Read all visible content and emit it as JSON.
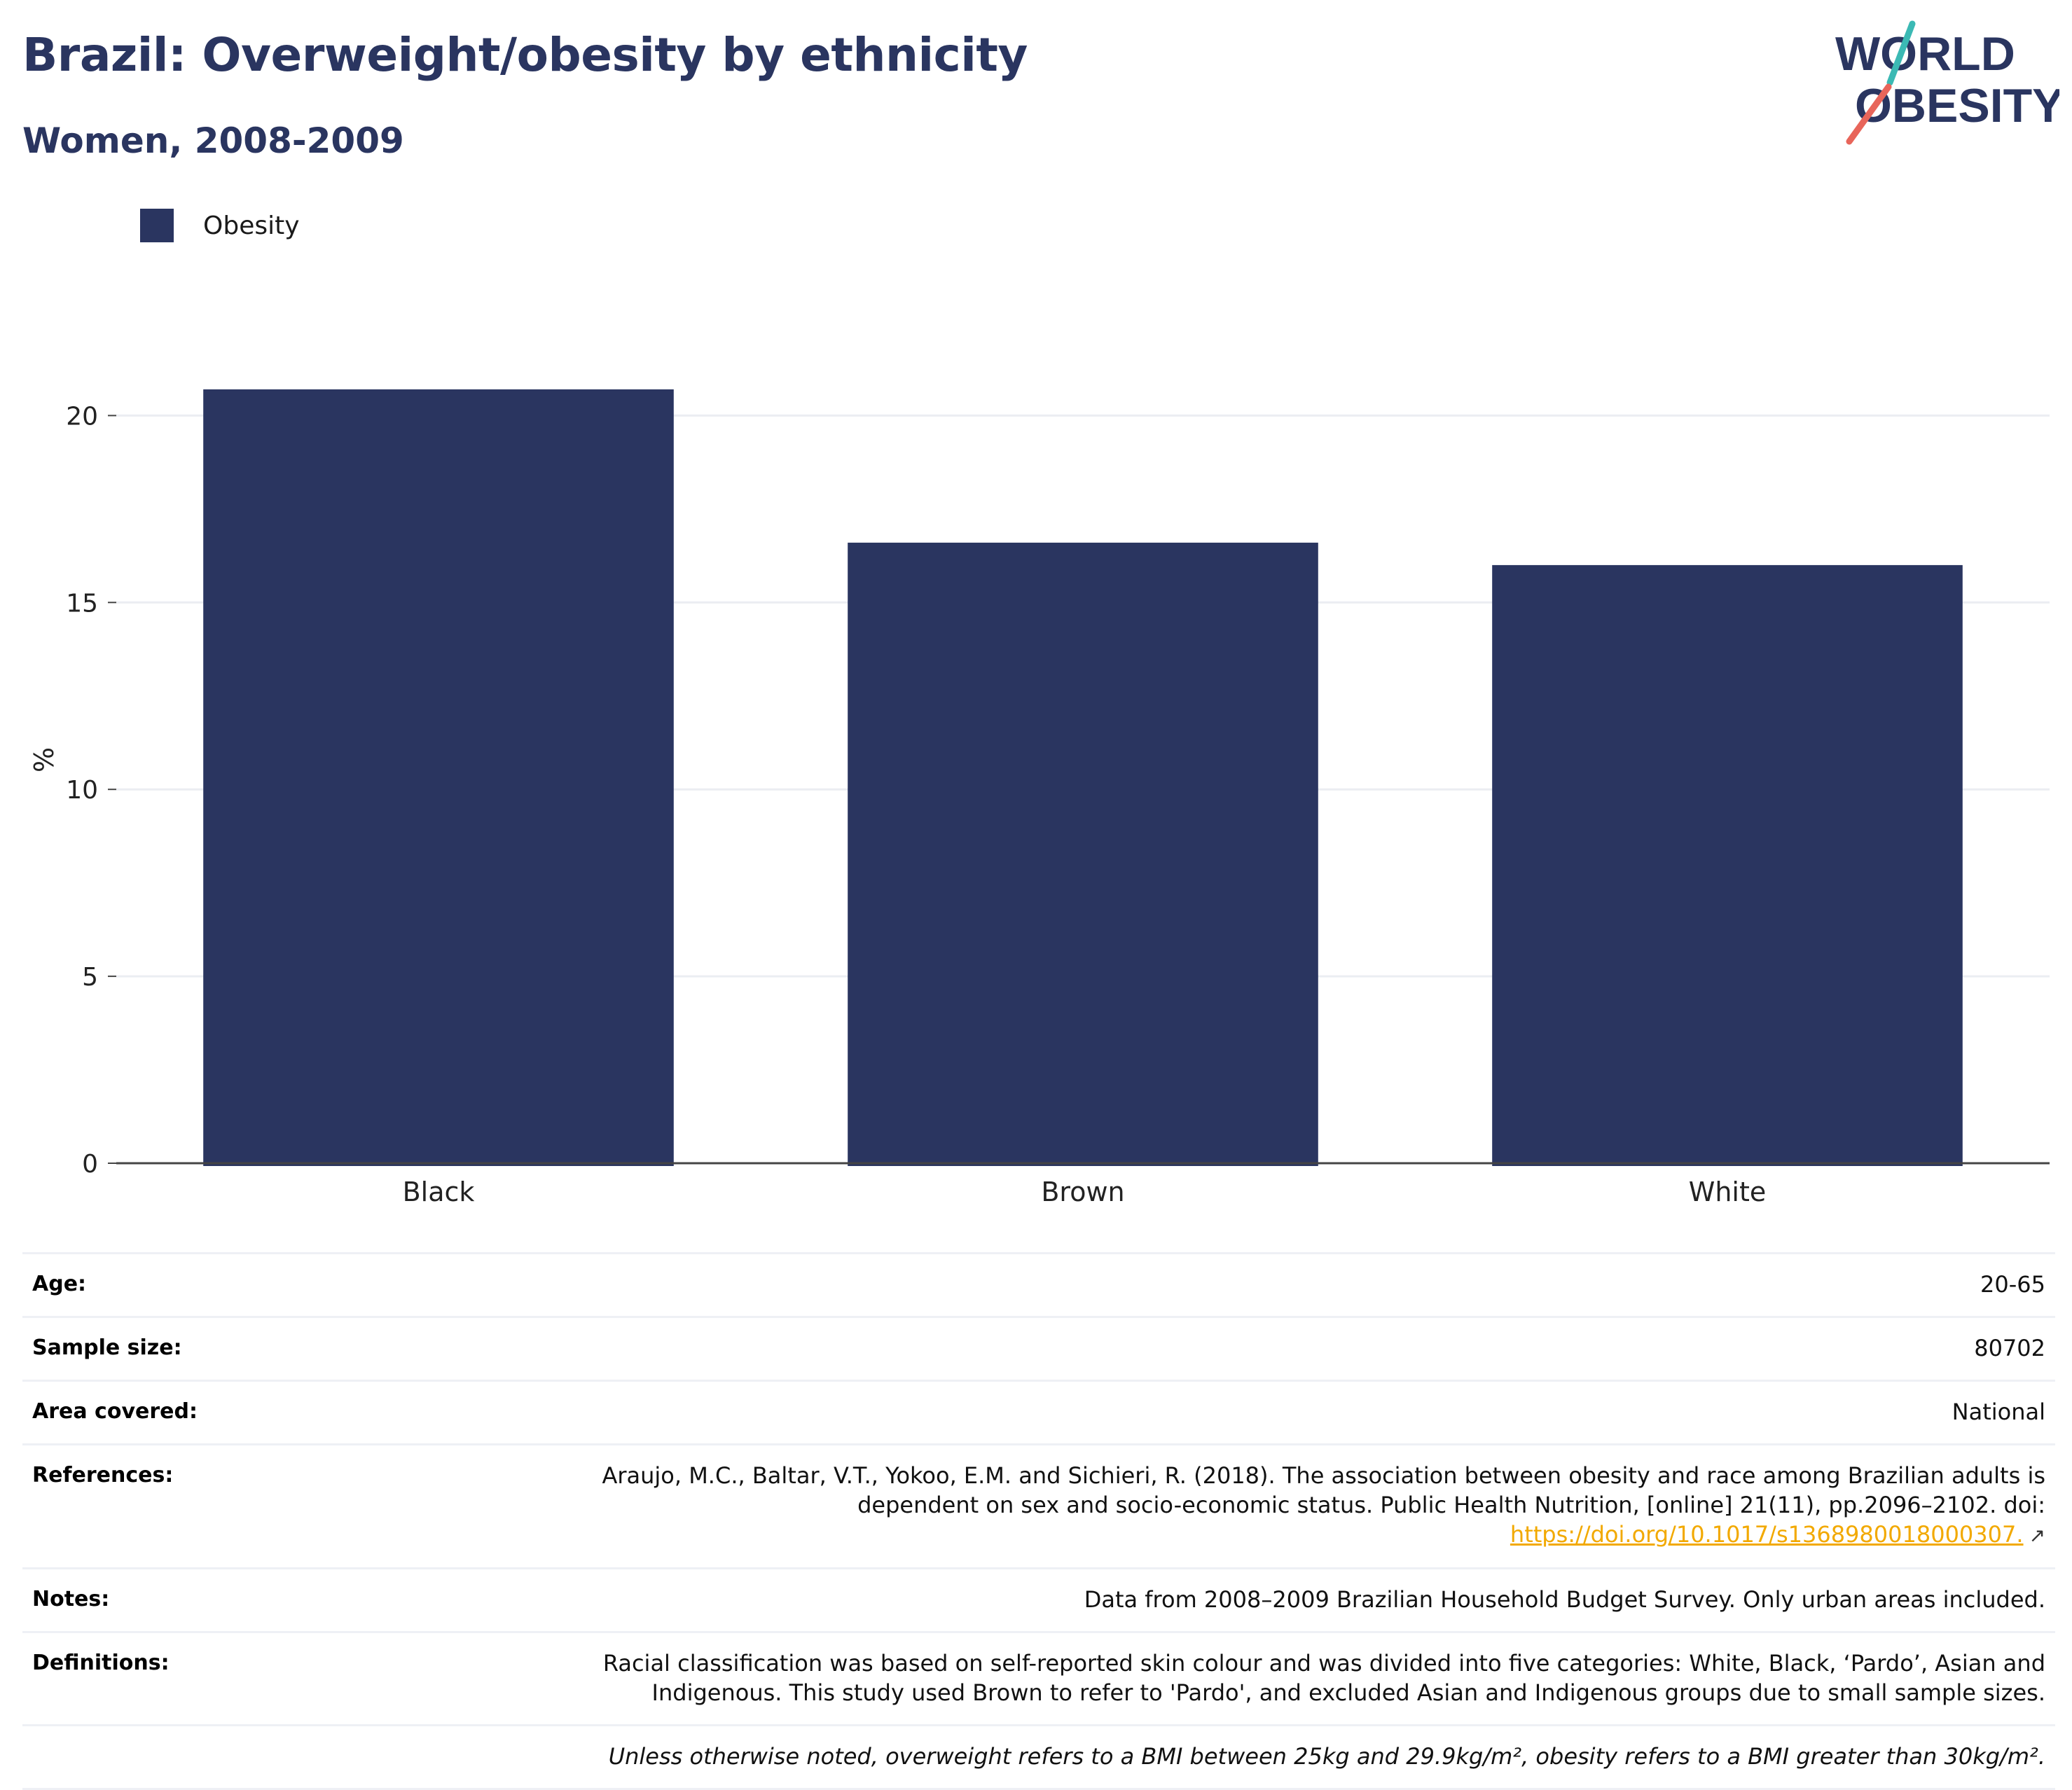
{
  "header": {
    "title": "Brazil: Overweight/obesity by ethnicity",
    "subtitle": "Women, 2008-2009"
  },
  "logo": {
    "line1": "WORLD",
    "line2": "OBESITY",
    "accent_teal": "#3bb9b4",
    "accent_coral": "#e8655a",
    "text_color": "#2a3560"
  },
  "chart_data": {
    "type": "bar",
    "categories": [
      "Black",
      "Brown",
      "White"
    ],
    "series": [
      {
        "name": "Obesity",
        "values": [
          20.7,
          16.6,
          16.0
        ],
        "color": "#2a3560"
      }
    ],
    "ylabel": "%",
    "ylim": [
      0,
      21
    ],
    "yticks": [
      0,
      5,
      10,
      15,
      20
    ],
    "grid": true,
    "legend_position": "top-left"
  },
  "info": {
    "age": {
      "label": "Age:",
      "value": "20-65"
    },
    "sample_size": {
      "label": "Sample size:",
      "value": "80702"
    },
    "area": {
      "label": "Area covered:",
      "value": "National"
    },
    "references": {
      "label": "References:",
      "line1": "Araujo, M.C., Baltar, V.T., Yokoo, E.M. and Sichieri, R. (2018). The association between obesity and race among Brazilian adults is",
      "line2": "dependent on sex and socio-economic status. Public Health Nutrition, [online] 21(11), pp.2096–2102. doi:",
      "link": "https://doi.org/10.1017/s1368980018000307.",
      "icon": "external-link-icon"
    },
    "notes": {
      "label": "Notes:",
      "value": "Data from 2008–2009 Brazilian Household Budget Survey. Only urban areas included."
    },
    "definitions": {
      "label": "Definitions:",
      "line1": "Racial classification was based on self-reported skin colour and was divided into five categories: White, Black, ‘Pardo’, Asian and",
      "line2": "Indigenous. This study used Brown to refer to 'Pardo', and excluded Asian and Indigenous groups due to small sample sizes."
    },
    "footnote": "Unless otherwise noted, overweight refers to a BMI between 25kg and 29.9kg/m², obesity refers to a BMI greater than 30kg/m²."
  }
}
